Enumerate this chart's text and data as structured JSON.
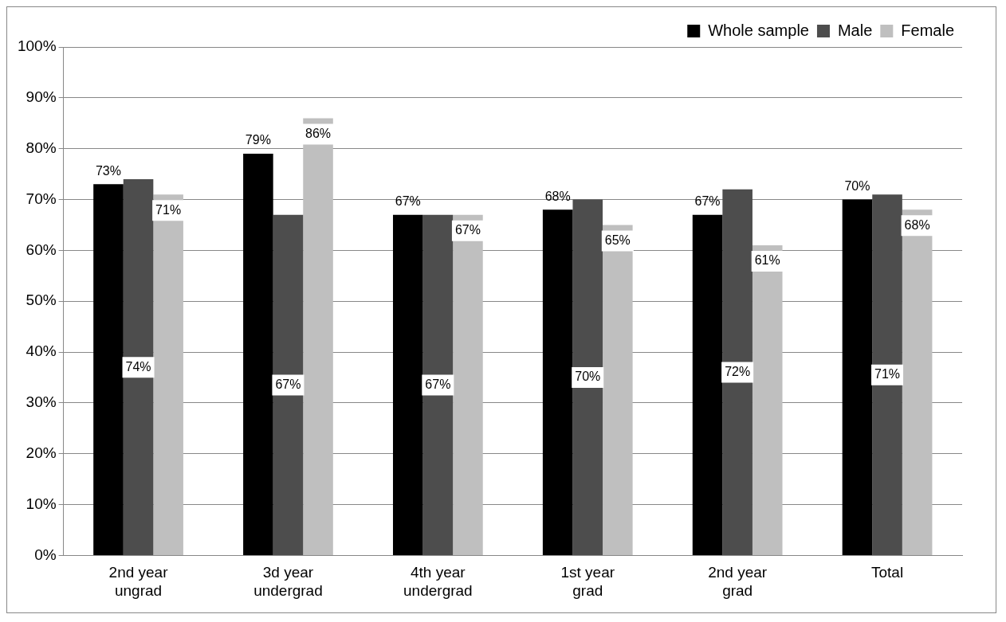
{
  "chart_data": {
    "type": "bar",
    "categories": [
      "2nd year ungrad",
      "3d year undergrad",
      "4th year undergrad",
      "1st year grad",
      "2nd year grad",
      "Total"
    ],
    "series": [
      {
        "name": "Whole sample",
        "color": "#000000",
        "values": [
          73,
          79,
          67,
          68,
          67,
          70
        ],
        "value_labels": [
          "73%",
          "79%",
          "67%",
          "68%",
          "67%",
          "70%"
        ]
      },
      {
        "name": "Male",
        "color": "#4d4d4d",
        "values": [
          74,
          67,
          67,
          70,
          72,
          71
        ],
        "value_labels": [
          "74%",
          "67%",
          "67%",
          "70%",
          "72%",
          "71%"
        ]
      },
      {
        "name": "Female",
        "color": "#bfbfbf",
        "values": [
          71,
          86,
          67,
          65,
          61,
          68
        ],
        "value_labels": [
          "71%",
          "86%",
          "67%",
          "65%",
          "61%",
          "68%"
        ]
      }
    ],
    "ylim": [
      0,
      100
    ],
    "yticks": [
      {
        "value": 0,
        "label": "0%"
      },
      {
        "value": 10,
        "label": "10%"
      },
      {
        "value": 20,
        "label": "20%"
      },
      {
        "value": 30,
        "label": "30%"
      },
      {
        "value": 40,
        "label": "40%"
      },
      {
        "value": 50,
        "label": "50%"
      },
      {
        "value": 60,
        "label": "60%"
      },
      {
        "value": 70,
        "label": "70%"
      },
      {
        "value": 80,
        "label": "80%"
      },
      {
        "value": 90,
        "label": "90%"
      },
      {
        "value": 100,
        "label": "100%"
      }
    ],
    "grid": "y",
    "legend": "top right"
  }
}
